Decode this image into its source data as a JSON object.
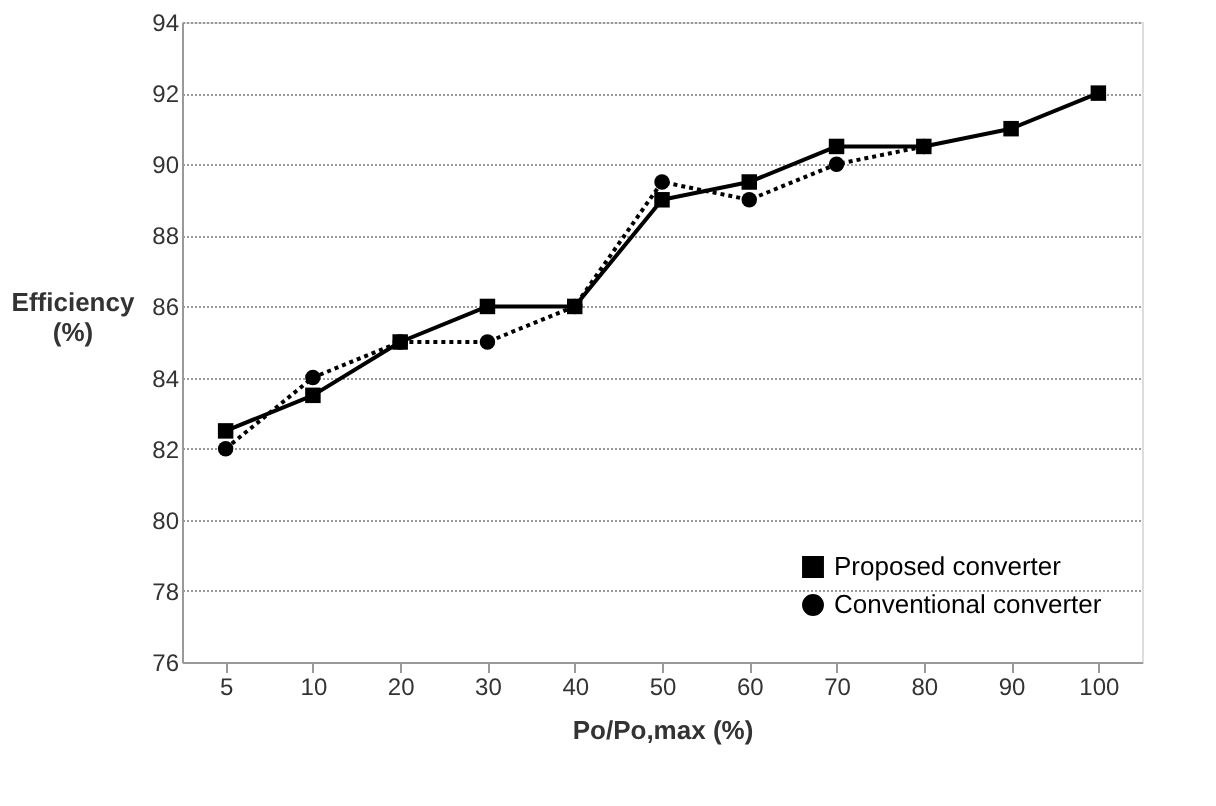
{
  "chart_data": {
    "type": "line",
    "xlabel": "Po/Po,max (%)",
    "ylabel": "Efficiency\n(%)",
    "categories": [
      "5",
      "10",
      "20",
      "30",
      "40",
      "50",
      "60",
      "70",
      "80",
      "90",
      "100"
    ],
    "series": [
      {
        "name": "Proposed converter",
        "color": "#000000",
        "marker": "square",
        "line_style": "solid",
        "values": [
          82.5,
          83.5,
          85,
          86,
          86,
          89,
          89.5,
          90.5,
          90.5,
          91,
          92
        ]
      },
      {
        "name": "Conventional converter",
        "color": "#000000",
        "marker": "circle",
        "line_style": "dotted",
        "values": [
          82,
          84,
          85,
          85,
          86,
          89.5,
          89,
          90,
          90.5,
          null,
          null
        ]
      }
    ],
    "ylim": [
      76,
      94
    ],
    "yticks": [
      76,
      78,
      80,
      82,
      84,
      86,
      88,
      90,
      92,
      94
    ],
    "grid": "y",
    "legend": "bottom right"
  }
}
